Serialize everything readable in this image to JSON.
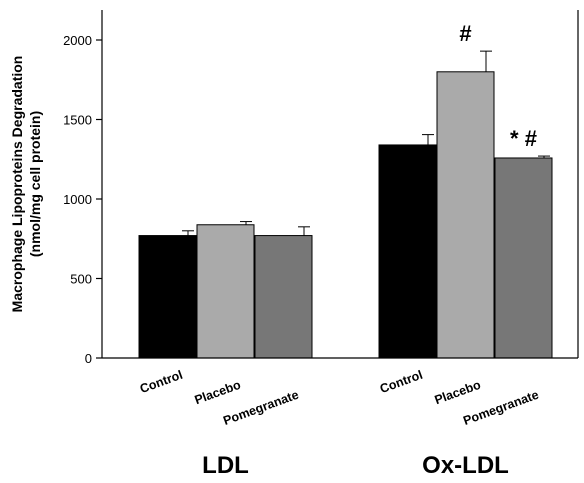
{
  "chart_data": {
    "type": "bar",
    "ylabel_line1": "Macrophage Lipoproteins Degradation",
    "ylabel_line2": "(nmol/mg cell protein)",
    "ylim": [
      0,
      2200
    ],
    "yticks": [
      0,
      500,
      1000,
      1500,
      2000
    ],
    "grid": false,
    "groups": [
      {
        "name": "LDL",
        "bars": [
          {
            "category": "Control",
            "value": 770,
            "error": 30,
            "color": "#000000",
            "annotation": ""
          },
          {
            "category": "Placebo",
            "value": 838,
            "error": 20,
            "color": "#aaaaaa",
            "annotation": ""
          },
          {
            "category": "Pomegranate",
            "value": 770,
            "error": 55,
            "color": "#777777",
            "annotation": ""
          }
        ]
      },
      {
        "name": "Ox-LDL",
        "bars": [
          {
            "category": "Control",
            "value": 1340,
            "error": 65,
            "color": "#000000",
            "annotation": ""
          },
          {
            "category": "Placebo",
            "value": 1800,
            "error": 130,
            "color": "#aaaaaa",
            "annotation": "#"
          },
          {
            "category": "Pomegranate",
            "value": 1258,
            "error": 12,
            "color": "#777777",
            "annotation": "* #"
          }
        ]
      }
    ]
  }
}
